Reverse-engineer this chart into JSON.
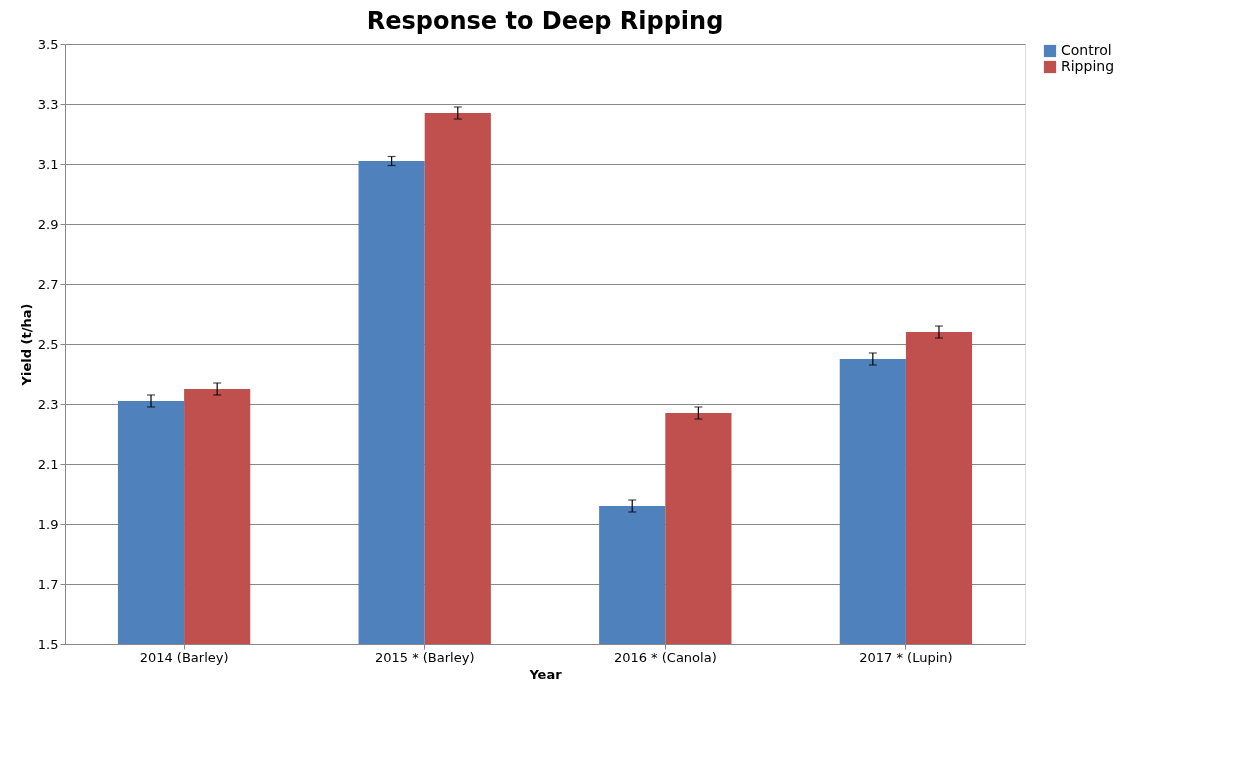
{
  "chart_data": {
    "type": "bar",
    "title": "Response to Deep Ripping",
    "xlabel": "Year",
    "ylabel": "Yield (t/ha)",
    "categories": [
      "2014 (Barley)",
      "2015 * (Barley)",
      "2016 * (Canola)",
      "2017 * (Lupin)"
    ],
    "series": [
      {
        "name": "Control",
        "color": "#4f81bd",
        "values": [
          2.31,
          3.11,
          1.96,
          2.45
        ],
        "errors": [
          0.02,
          0.015,
          0.02,
          0.02
        ]
      },
      {
        "name": "Ripping",
        "color": "#c0504d",
        "values": [
          2.35,
          3.27,
          2.27,
          2.54
        ],
        "errors": [
          0.02,
          0.02,
          0.02,
          0.02
        ]
      }
    ],
    "ylim": [
      1.5,
      3.5
    ],
    "yticks": [
      1.5,
      1.7,
      1.9,
      2.1,
      2.3,
      2.5,
      2.7,
      2.9,
      3.1,
      3.3,
      3.5
    ],
    "grid": "y",
    "legend": "right"
  }
}
